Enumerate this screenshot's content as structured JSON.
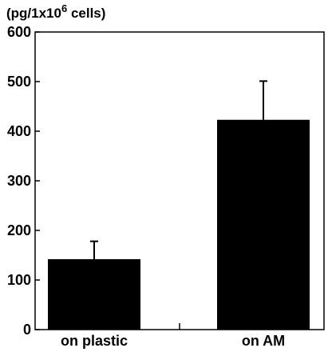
{
  "chart_data": {
    "type": "bar",
    "ylabel": "(pg/1x10",
    "ylabel_superscript": "6",
    "ylabel_suffix": " cells)",
    "categories": [
      "on plastic",
      "on AM"
    ],
    "values": [
      142,
      423
    ],
    "error_upper": [
      178,
      501
    ],
    "ylim": [
      0,
      600
    ],
    "yticks": [
      0,
      100,
      200,
      300,
      400,
      500,
      600
    ],
    "bar_color": "#000000",
    "grid": false,
    "legend": "none"
  }
}
